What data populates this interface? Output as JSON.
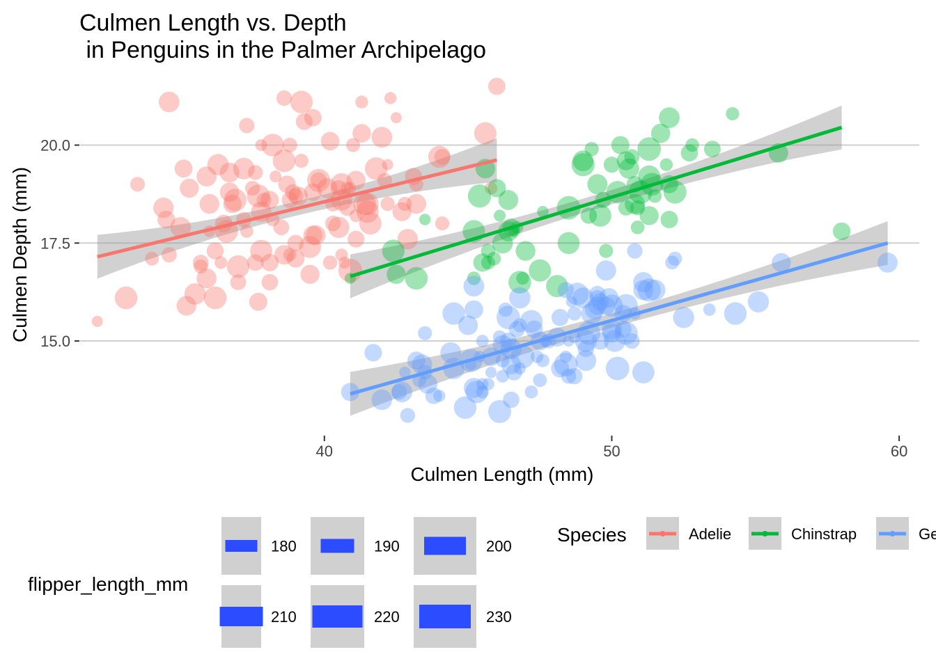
{
  "chart_data": {
    "type": "scatter",
    "title_line1": "Culmen Length vs. Depth",
    "title_line2": " in Penguins in the Palmer Archipelago",
    "xlabel": "Culmen Length (mm)",
    "ylabel": "Culmen Depth (mm)",
    "xlim": [
      31.5,
      60.7
    ],
    "ylim": [
      12.55,
      21.75
    ],
    "x_ticks": [
      40,
      50,
      60
    ],
    "x_tick_labels": [
      "40",
      "50",
      "60"
    ],
    "y_ticks": [
      15.0,
      17.5,
      20.0
    ],
    "y_tick_labels": [
      "15.0",
      "17.5",
      "20.0"
    ],
    "grid": "horizontal major lines",
    "size_legend": {
      "title": "flipper_length_mm",
      "labels": [
        "180",
        "190",
        "200",
        "210",
        "220",
        "230"
      ],
      "values": [
        180,
        190,
        200,
        210,
        220,
        230
      ]
    },
    "color_legend": {
      "title": "Species",
      "labels": [
        "Adelie",
        "Chinstrap",
        "Gentoo"
      ]
    },
    "series": [
      {
        "name": "Adelie",
        "color": "#F8766D",
        "fit": {
          "x": [
            32.1,
            46.0
          ],
          "y": [
            17.15,
            19.62
          ]
        },
        "points": [
          [
            32.1,
            15.5
          ],
          [
            33.1,
            16.1
          ],
          [
            33.5,
            19.0
          ],
          [
            34.0,
            17.1
          ],
          [
            34.4,
            18.4
          ],
          [
            34.5,
            18.1
          ],
          [
            34.6,
            17.2
          ],
          [
            34.6,
            21.1
          ],
          [
            35.0,
            17.9
          ],
          [
            35.1,
            19.4
          ],
          [
            35.2,
            15.9
          ],
          [
            35.3,
            18.9
          ],
          [
            35.5,
            16.2
          ],
          [
            35.7,
            16.9
          ],
          [
            35.7,
            17.0
          ],
          [
            35.9,
            19.2
          ],
          [
            35.9,
            16.6
          ],
          [
            36.0,
            17.8
          ],
          [
            36.0,
            18.5
          ],
          [
            36.2,
            17.3
          ],
          [
            36.2,
            16.1
          ],
          [
            36.3,
            19.5
          ],
          [
            36.4,
            17.0
          ],
          [
            36.5,
            18.0
          ],
          [
            36.6,
            17.8
          ],
          [
            36.7,
            19.3
          ],
          [
            36.7,
            18.8
          ],
          [
            36.8,
            18.5
          ],
          [
            36.9,
            18.6
          ],
          [
            37.0,
            16.9
          ],
          [
            37.0,
            16.5
          ],
          [
            37.2,
            18.1
          ],
          [
            37.2,
            19.4
          ],
          [
            37.3,
            20.5
          ],
          [
            37.3,
            17.8
          ],
          [
            37.5,
            18.9
          ],
          [
            37.6,
            17.0
          ],
          [
            37.6,
            19.3
          ],
          [
            37.7,
            18.7
          ],
          [
            37.7,
            16.0
          ],
          [
            37.8,
            18.3
          ],
          [
            37.8,
            17.3
          ],
          [
            37.8,
            20.0
          ],
          [
            37.9,
            18.6
          ],
          [
            38.1,
            18.6
          ],
          [
            38.1,
            17.0
          ],
          [
            38.1,
            16.5
          ],
          [
            38.2,
            18.1
          ],
          [
            38.2,
            20.0
          ],
          [
            38.3,
            19.2
          ],
          [
            38.5,
            17.9
          ],
          [
            38.6,
            21.2
          ],
          [
            38.6,
            17.2
          ],
          [
            38.6,
            19.6
          ],
          [
            38.7,
            19.0
          ],
          [
            38.8,
            17.2
          ],
          [
            38.8,
            18.6
          ],
          [
            38.8,
            20.0
          ],
          [
            38.9,
            18.8
          ],
          [
            39.0,
            17.5
          ],
          [
            39.0,
            18.7
          ],
          [
            39.0,
            17.1
          ],
          [
            39.1,
            18.7
          ],
          [
            39.2,
            19.6
          ],
          [
            39.2,
            21.1
          ],
          [
            39.3,
            20.6
          ],
          [
            39.5,
            17.4
          ],
          [
            39.5,
            16.7
          ],
          [
            39.6,
            17.7
          ],
          [
            39.6,
            18.8
          ],
          [
            39.6,
            20.7
          ],
          [
            39.7,
            17.7
          ],
          [
            39.8,
            19.1
          ],
          [
            39.8,
            19.1
          ],
          [
            40.1,
            18.9
          ],
          [
            40.2,
            17.0
          ],
          [
            40.2,
            20.1
          ],
          [
            40.3,
            18.0
          ],
          [
            40.3,
            18.5
          ],
          [
            40.5,
            18.9
          ],
          [
            40.5,
            17.9
          ],
          [
            40.6,
            19.0
          ],
          [
            40.6,
            17.2
          ],
          [
            40.6,
            18.6
          ],
          [
            40.7,
            17.0
          ],
          [
            40.8,
            18.4
          ],
          [
            40.8,
            18.9
          ],
          [
            40.9,
            18.9
          ],
          [
            40.9,
            16.8
          ],
          [
            41.0,
            20.0
          ],
          [
            41.1,
            19.1
          ],
          [
            41.1,
            18.2
          ],
          [
            41.1,
            17.6
          ],
          [
            41.3,
            20.3
          ],
          [
            41.3,
            21.1
          ],
          [
            41.4,
            18.5
          ],
          [
            41.5,
            18.3
          ],
          [
            41.5,
            18.5
          ],
          [
            41.6,
            18.0
          ],
          [
            41.8,
            19.4
          ],
          [
            42.0,
            20.2
          ],
          [
            42.1,
            19.1
          ],
          [
            42.2,
            19.5
          ],
          [
            42.2,
            18.5
          ],
          [
            42.3,
            21.2
          ],
          [
            42.5,
            20.7
          ],
          [
            42.7,
            18.3
          ],
          [
            42.8,
            18.5
          ],
          [
            42.9,
            17.6
          ],
          [
            43.1,
            19.2
          ],
          [
            43.2,
            18.5
          ],
          [
            43.2,
            19.0
          ],
          [
            44.0,
            19.7
          ],
          [
            44.1,
            18.0
          ],
          [
            44.1,
            19.7
          ],
          [
            45.6,
            20.3
          ],
          [
            45.8,
            18.9
          ],
          [
            46.0,
            21.5
          ]
        ]
      },
      {
        "name": "Chinstrap",
        "color": "#00BA38",
        "fit": {
          "x": [
            40.9,
            58.0
          ],
          "y": [
            16.65,
            20.45
          ]
        },
        "points": [
          [
            40.9,
            16.6
          ],
          [
            42.4,
            17.3
          ],
          [
            42.5,
            16.7
          ],
          [
            43.2,
            16.6
          ],
          [
            43.5,
            18.1
          ],
          [
            45.2,
            17.8
          ],
          [
            45.2,
            16.6
          ],
          [
            45.4,
            18.7
          ],
          [
            45.5,
            17.0
          ],
          [
            45.6,
            19.4
          ],
          [
            45.7,
            17.3
          ],
          [
            45.7,
            17.0
          ],
          [
            45.9,
            17.1
          ],
          [
            46.0,
            18.9
          ],
          [
            46.1,
            18.2
          ],
          [
            46.2,
            17.5
          ],
          [
            46.4,
            18.6
          ],
          [
            46.4,
            17.8
          ],
          [
            46.5,
            17.9
          ],
          [
            46.6,
            17.8
          ],
          [
            46.7,
            17.9
          ],
          [
            46.8,
            16.5
          ],
          [
            46.9,
            16.6
          ],
          [
            47.0,
            17.3
          ],
          [
            47.5,
            16.8
          ],
          [
            47.6,
            18.3
          ],
          [
            48.1,
            16.4
          ],
          [
            48.5,
            17.5
          ],
          [
            48.5,
            18.4
          ],
          [
            49.0,
            19.5
          ],
          [
            49.0,
            19.6
          ],
          [
            49.2,
            18.2
          ],
          [
            49.3,
            19.9
          ],
          [
            49.5,
            19.0
          ],
          [
            49.6,
            18.2
          ],
          [
            49.7,
            18.6
          ],
          [
            49.8,
            17.3
          ],
          [
            50.0,
            19.5
          ],
          [
            50.2,
            18.8
          ],
          [
            50.3,
            20.0
          ],
          [
            50.5,
            18.4
          ],
          [
            50.5,
            19.6
          ],
          [
            50.6,
            19.4
          ],
          [
            50.7,
            19.7
          ],
          [
            50.8,
            18.5
          ],
          [
            50.8,
            19.0
          ],
          [
            50.9,
            17.9
          ],
          [
            50.9,
            18.4
          ],
          [
            51.0,
            18.8
          ],
          [
            51.3,
            19.9
          ],
          [
            51.3,
            18.2
          ],
          [
            51.3,
            19.2
          ],
          [
            51.4,
            19.0
          ],
          [
            51.5,
            18.7
          ],
          [
            51.7,
            20.3
          ],
          [
            51.9,
            19.5
          ],
          [
            52.0,
            18.1
          ],
          [
            52.0,
            19.0
          ],
          [
            52.0,
            20.7
          ],
          [
            52.2,
            18.8
          ],
          [
            52.7,
            19.8
          ],
          [
            52.8,
            20.0
          ],
          [
            53.5,
            19.9
          ],
          [
            54.2,
            20.8
          ],
          [
            55.8,
            19.8
          ],
          [
            58.0,
            17.8
          ]
        ]
      },
      {
        "name": "Gentoo",
        "color": "#619CFF",
        "fit": {
          "x": [
            40.9,
            59.6
          ],
          "y": [
            13.65,
            17.5
          ]
        },
        "points": [
          [
            40.9,
            13.7
          ],
          [
            41.7,
            14.7
          ],
          [
            42.0,
            13.5
          ],
          [
            42.6,
            13.7
          ],
          [
            42.7,
            13.7
          ],
          [
            42.8,
            14.2
          ],
          [
            42.9,
            13.1
          ],
          [
            43.2,
            14.5
          ],
          [
            43.3,
            14.0
          ],
          [
            43.4,
            14.4
          ],
          [
            43.5,
            14.2
          ],
          [
            43.5,
            15.2
          ],
          [
            43.6,
            13.9
          ],
          [
            43.8,
            13.6
          ],
          [
            44.0,
            13.6
          ],
          [
            44.4,
            14.7
          ],
          [
            44.5,
            14.3
          ],
          [
            44.5,
            15.7
          ],
          [
            44.9,
            13.3
          ],
          [
            45.0,
            15.4
          ],
          [
            45.1,
            14.5
          ],
          [
            45.1,
            14.4
          ],
          [
            45.2,
            16.4
          ],
          [
            45.2,
            15.8
          ],
          [
            45.2,
            13.8
          ],
          [
            45.3,
            13.7
          ],
          [
            45.4,
            14.6
          ],
          [
            45.5,
            13.7
          ],
          [
            45.5,
            13.9
          ],
          [
            45.5,
            15.0
          ],
          [
            45.7,
            13.9
          ],
          [
            45.8,
            14.2
          ],
          [
            45.8,
            14.6
          ],
          [
            46.1,
            13.2
          ],
          [
            46.1,
            15.1
          ],
          [
            46.2,
            14.1
          ],
          [
            46.2,
            14.5
          ],
          [
            46.2,
            14.9
          ],
          [
            46.3,
            15.8
          ],
          [
            46.4,
            15.0
          ],
          [
            46.4,
            15.6
          ],
          [
            46.5,
            13.5
          ],
          [
            46.5,
            14.4
          ],
          [
            46.5,
            14.8
          ],
          [
            46.6,
            14.2
          ],
          [
            46.7,
            15.3
          ],
          [
            46.8,
            14.3
          ],
          [
            46.8,
            15.4
          ],
          [
            46.8,
            16.1
          ],
          [
            46.9,
            14.6
          ],
          [
            47.2,
            13.7
          ],
          [
            47.2,
            15.5
          ],
          [
            47.3,
            15.3
          ],
          [
            47.4,
            14.6
          ],
          [
            47.5,
            14.0
          ],
          [
            47.5,
            15.0
          ],
          [
            47.6,
            14.5
          ],
          [
            47.7,
            15.0
          ],
          [
            47.8,
            15.0
          ],
          [
            48.1,
            15.1
          ],
          [
            48.2,
            14.3
          ],
          [
            48.2,
            15.6
          ],
          [
            48.4,
            14.4
          ],
          [
            48.4,
            14.6
          ],
          [
            48.4,
            16.3
          ],
          [
            48.5,
            14.1
          ],
          [
            48.5,
            15.0
          ],
          [
            48.6,
            16.0
          ],
          [
            48.7,
            14.1
          ],
          [
            48.7,
            15.1
          ],
          [
            48.7,
            15.7
          ],
          [
            48.8,
            16.2
          ],
          [
            49.0,
            16.1
          ],
          [
            49.1,
            14.5
          ],
          [
            49.1,
            14.8
          ],
          [
            49.1,
            15.0
          ],
          [
            49.2,
            15.2
          ],
          [
            49.3,
            15.7
          ],
          [
            49.4,
            15.8
          ],
          [
            49.5,
            15.9
          ],
          [
            49.5,
            16.1
          ],
          [
            49.5,
            16.2
          ],
          [
            49.6,
            15.0
          ],
          [
            49.6,
            16.0
          ],
          [
            49.8,
            15.9
          ],
          [
            49.8,
            16.8
          ],
          [
            49.9,
            16.1
          ],
          [
            50.0,
            15.2
          ],
          [
            50.0,
            15.3
          ],
          [
            50.0,
            15.9
          ],
          [
            50.1,
            15.0
          ],
          [
            50.2,
            14.3
          ],
          [
            50.4,
            15.3
          ],
          [
            50.4,
            15.7
          ],
          [
            50.5,
            15.2
          ],
          [
            50.5,
            15.9
          ],
          [
            50.7,
            15.0
          ],
          [
            50.8,
            15.7
          ],
          [
            50.8,
            17.3
          ],
          [
            51.1,
            14.2
          ],
          [
            51.1,
            16.3
          ],
          [
            51.1,
            16.5
          ],
          [
            51.3,
            16.3
          ],
          [
            51.5,
            16.3
          ],
          [
            52.1,
            17.0
          ],
          [
            52.2,
            17.1
          ],
          [
            52.5,
            15.6
          ],
          [
            53.4,
            15.8
          ],
          [
            54.3,
            15.7
          ],
          [
            55.1,
            16.0
          ],
          [
            55.9,
            17.0
          ],
          [
            59.6,
            17.0
          ]
        ]
      }
    ]
  }
}
